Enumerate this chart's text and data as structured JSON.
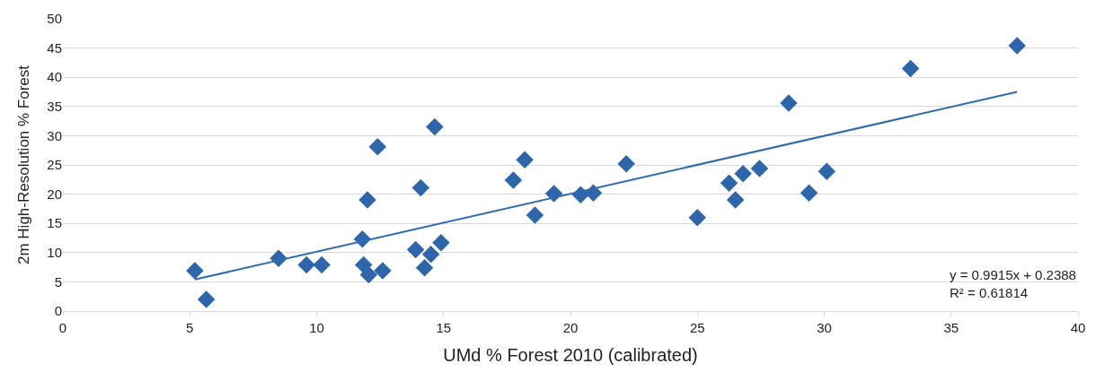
{
  "chart_data": {
    "type": "scatter",
    "xlabel": "UMd % Forest 2010 (calibrated)",
    "ylabel": "2m High-Resolution % Forest",
    "xlim": [
      0,
      40
    ],
    "xticks": [
      0,
      5,
      10,
      15,
      20,
      25,
      30,
      35,
      40
    ],
    "ylim": [
      0,
      50
    ],
    "yticks": [
      0,
      5,
      10,
      15,
      20,
      25,
      30,
      35,
      40,
      45,
      50
    ],
    "grid": "y",
    "series": [
      {
        "marker": "diamond",
        "color": "#2e66ab",
        "x": [
          5.2,
          5.65,
          8.5,
          9.6,
          10.2,
          11.8,
          11.85,
          12.0,
          12.05,
          12.4,
          12.6,
          13.9,
          14.1,
          14.25,
          14.5,
          14.65,
          14.9,
          17.75,
          18.2,
          18.6,
          19.35,
          20.4,
          20.9,
          22.2,
          25.0,
          26.25,
          26.5,
          26.8,
          27.45,
          28.6,
          29.4,
          30.1,
          33.4,
          37.6
        ],
        "values": [
          6.9,
          2.0,
          9.0,
          7.9,
          7.9,
          12.3,
          7.9,
          19.0,
          6.2,
          28.1,
          6.9,
          10.5,
          21.1,
          7.4,
          9.7,
          31.5,
          11.7,
          22.4,
          25.9,
          16.4,
          20.1,
          19.9,
          20.2,
          25.2,
          16.0,
          21.9,
          19.0,
          23.5,
          24.4,
          35.6,
          20.2,
          23.9,
          41.5,
          45.4
        ]
      },
      {
        "type": "line",
        "marker": "none",
        "color": "#2e6bb0",
        "x": [
          5.2,
          37.6
        ],
        "values": [
          5.4,
          37.5
        ]
      }
    ],
    "annotations": [
      "y = 0.9915x + 0.2388",
      "R² = 0.61814"
    ]
  }
}
